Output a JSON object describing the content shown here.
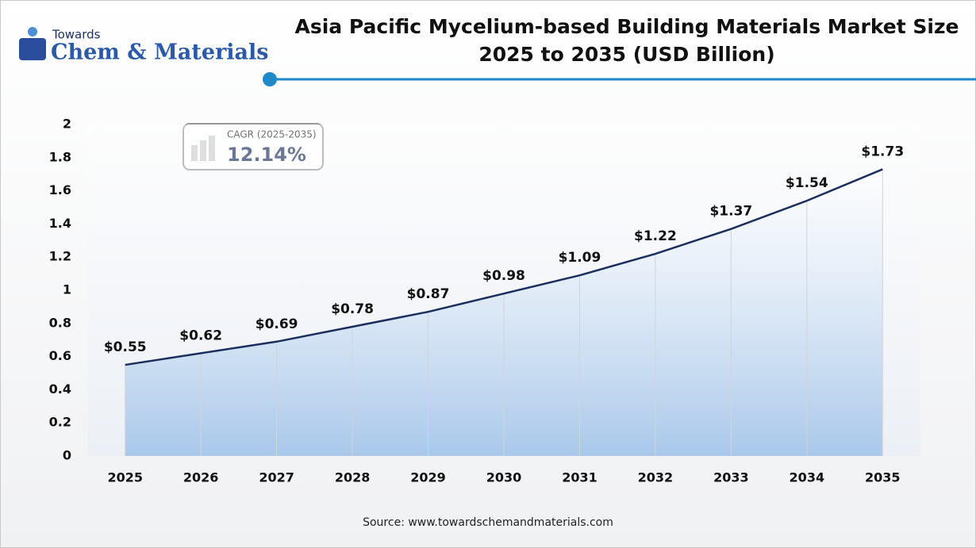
{
  "brand": {
    "small": "Towards",
    "large": "Chem & Materials"
  },
  "chart_data": {
    "type": "line",
    "title": "Asia Pacific Mycelium-based Building Materials Market Size",
    "subtitle": "2025 to 2035 (USD Billion)",
    "categories": [
      "2025",
      "2026",
      "2027",
      "2028",
      "2029",
      "2030",
      "2031",
      "2032",
      "2033",
      "2034",
      "2035"
    ],
    "values": [
      0.55,
      0.62,
      0.69,
      0.78,
      0.87,
      0.98,
      1.09,
      1.22,
      1.37,
      1.54,
      1.73
    ],
    "value_labels": [
      "$0.55",
      "$0.62",
      "$0.69",
      "$0.78",
      "$0.87",
      "$0.98",
      "$1.09",
      "$1.22",
      "$1.37",
      "$1.54",
      "$1.73"
    ],
    "color": "#1b2f5e",
    "ylim": [
      0,
      2
    ],
    "yticks": [
      0,
      0.2,
      0.4,
      0.6,
      0.8,
      1,
      1.2,
      1.4,
      1.6,
      1.8,
      2
    ],
    "grid": false,
    "annotation": {
      "label": "CAGR (2025-2035)",
      "value": "12.14%"
    },
    "source": "Source: www.towardschemandmaterials.com"
  }
}
